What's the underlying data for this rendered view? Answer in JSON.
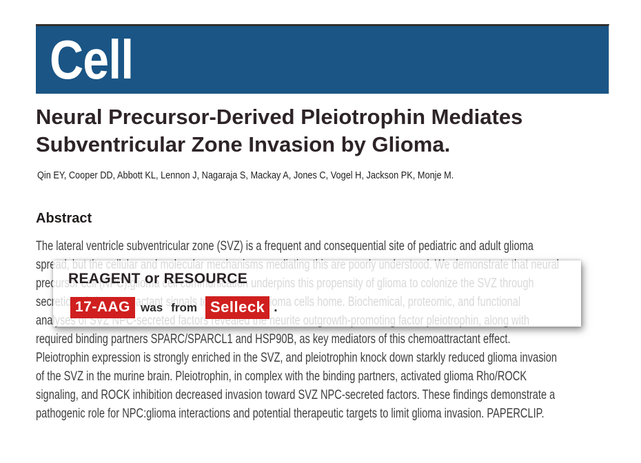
{
  "journal": {
    "logo": "Cell",
    "banner_color": "#1a5585"
  },
  "article": {
    "title": "Neural Precursor-Derived Pleiotrophin Mediates Subventricular Zone Invasion by Glioma.",
    "authors": "Qin EY, Cooper DD, Abbott KL, Lennon J, Nagaraja S, Mackay A, Jones C, Vogel H, Jackson PK, Monje M."
  },
  "abstract": {
    "heading": "Abstract",
    "lines": [
      "The lateral ventricle subventricular zone (SVZ) is a frequent and consequential site of pediatric and adult glioma",
      "spread, but the cellular and molecular mechanisms mediating this are poorly understood. We demonstrate that neural",
      "precursor cell (NPC):glioma cell communication underpins this propensity of glioma to colonize the SVZ through",
      "secretion of chemoattractant signals toward which glioma cells home. Biochemical, proteomic, and functional",
      "analyses of SVZ NPC-secreted factors revealed the neurite outgrowth-promoting factor pleiotrophin, along with",
      "required binding partners SPARC/SPARCL1 and HSP90B, as key mediators of this chemoattractant effect.",
      "Pleiotrophin expression is strongly enriched in the SVZ, and pleiotrophin knock down starkly reduced glioma invasion",
      "of the SVZ in the murine brain. Pleiotrophin, in complex with the binding partners, activated glioma Rho/ROCK",
      "signaling, and ROCK inhibition decreased invasion toward SVZ NPC-secreted factors. These findings demonstrate a",
      "pathogenic role for NPC:glioma interactions and potential therapeutic targets to limit glioma invasion. PAPERCLIP."
    ]
  },
  "popup": {
    "heading": "REAGENT or RESOURCE",
    "sentence": {
      "reagent": "17-AAG",
      "word1": "was",
      "word2": "from",
      "vendor": "Selleck",
      "period": ".",
      "highlight_color": "#d01f1f"
    }
  }
}
